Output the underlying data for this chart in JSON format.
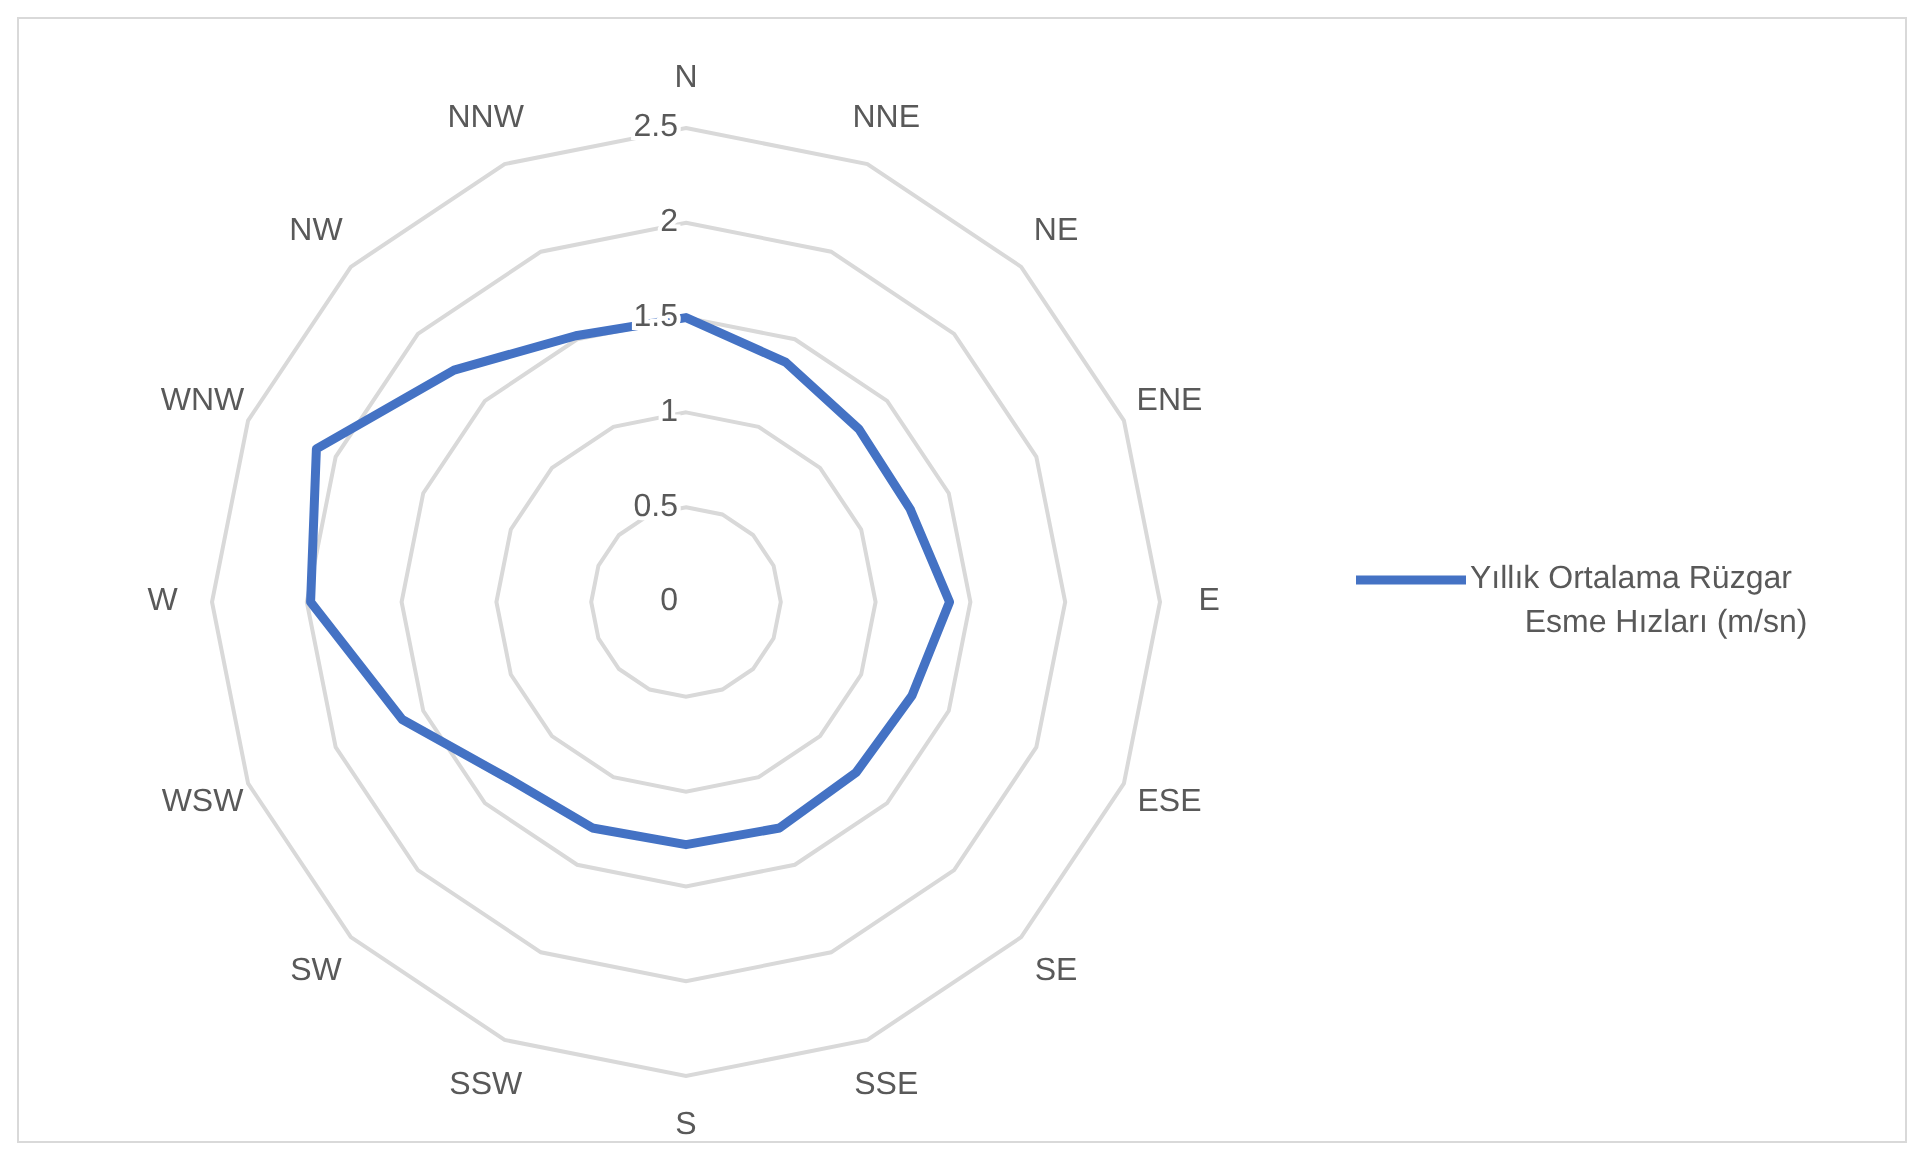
{
  "chart_data": {
    "type": "radar",
    "categories": [
      "N",
      "NNE",
      "NE",
      "ENE",
      "E",
      "ESE",
      "SE",
      "SSE",
      "S",
      "SSW",
      "SW",
      "WSW",
      "W",
      "WNW",
      "NW",
      "NNW"
    ],
    "series": [
      {
        "name": "Yıllık Ortalama Rüzgar Esme Hızları (m/sn)",
        "color": "#4472c4",
        "values": [
          1.5,
          1.37,
          1.29,
          1.28,
          1.39,
          1.29,
          1.27,
          1.29,
          1.28,
          1.29,
          1.32,
          1.62,
          1.98,
          2.11,
          1.73,
          1.52
        ]
      }
    ],
    "ylim": [
      0,
      2.5
    ],
    "yticks": [
      0,
      0.5,
      1,
      1.5,
      2,
      2.5
    ],
    "grid": true,
    "legend": "right",
    "marker": "none"
  }
}
